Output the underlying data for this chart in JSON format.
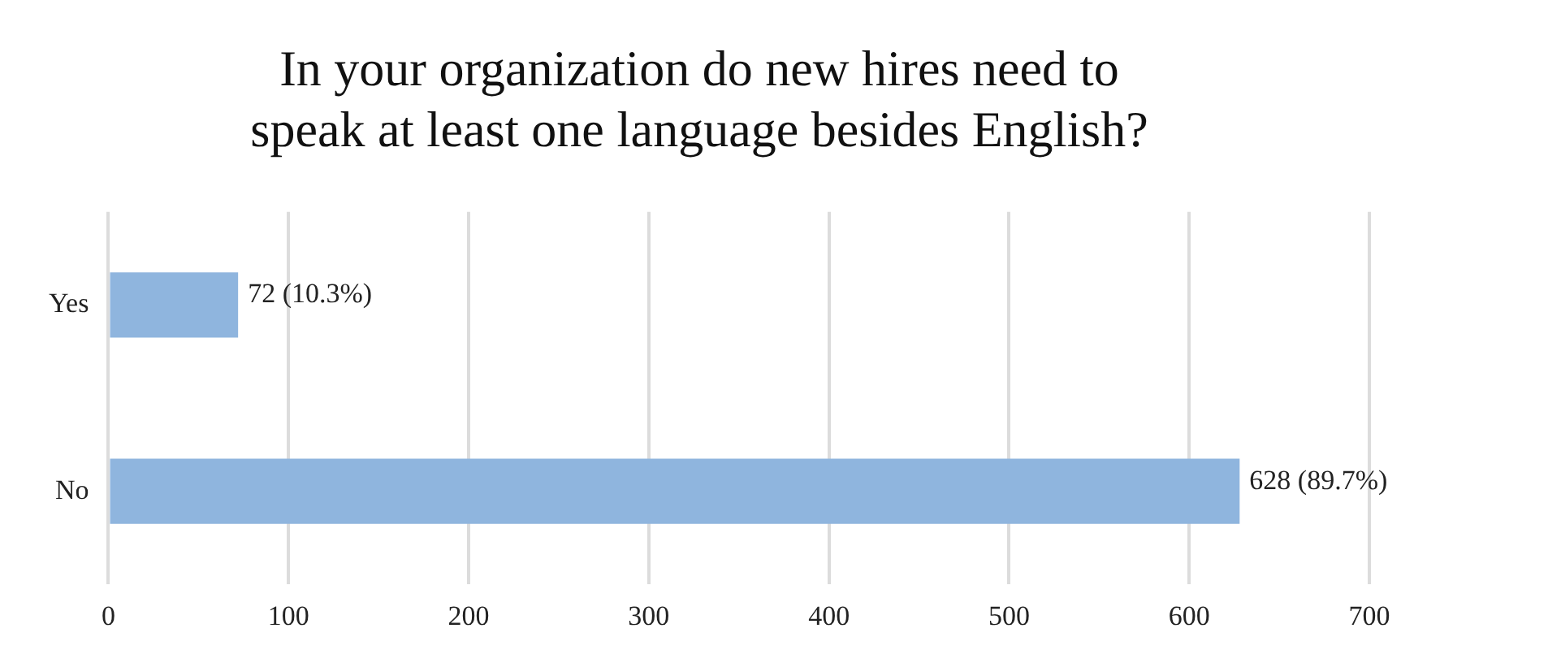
{
  "chart_data": {
    "type": "bar",
    "orientation": "horizontal",
    "title": "In your organization do new hires need to\nspeak at least one language besides English?",
    "categories": [
      "Yes",
      "No"
    ],
    "values": [
      72,
      628
    ],
    "value_labels": [
      "72 (10.3%)",
      "628 (89.7%)"
    ],
    "color": "#8fb5de",
    "xlim": [
      0,
      700
    ],
    "xticks": [
      0,
      100,
      200,
      300,
      400,
      500,
      600,
      700
    ],
    "grid": "x",
    "legend": false
  }
}
